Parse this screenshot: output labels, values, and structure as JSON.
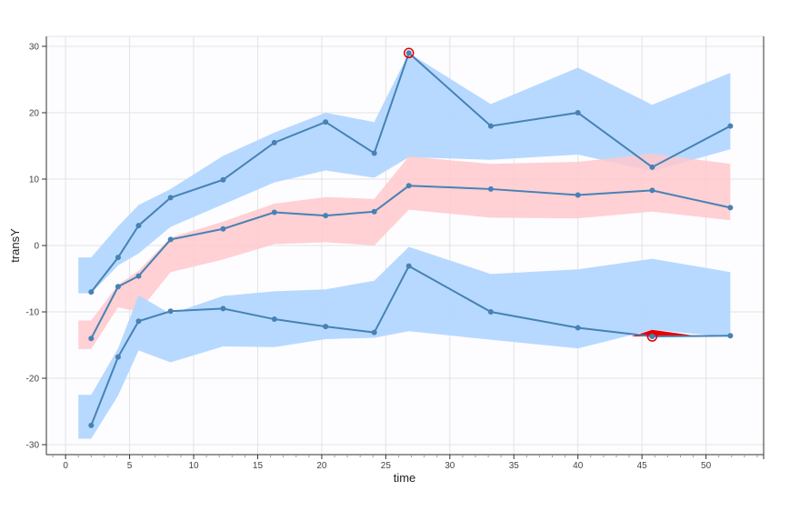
{
  "chart_data": {
    "type": "line",
    "xlabel": "time",
    "ylabel": "transY",
    "xlim": [
      -1.5,
      54.5
    ],
    "ylim": [
      -31.5,
      31.5
    ],
    "xticks": [
      0,
      5,
      10,
      15,
      20,
      25,
      30,
      35,
      40,
      45,
      50
    ],
    "yticks": [
      -30,
      -20,
      -10,
      0,
      10,
      20,
      30
    ],
    "grid": true,
    "colors": {
      "upper_band": "#b3d7ff",
      "median_band": "#ffc8cc",
      "lower_band": "#b3d7ff",
      "line": "#4682b4",
      "outlier_ring": "#e00000",
      "outlier_fill": "#ee0000"
    },
    "percentile_lines": [
      {
        "name": "upper",
        "x": [
          2,
          4.1,
          5.7,
          8.2,
          12.3,
          16.3,
          20.3,
          24.1,
          26.8,
          33.2,
          40,
          45.8,
          51.9
        ],
        "y": [
          -7,
          -1.8,
          3,
          7.2,
          9.9,
          15.5,
          18.6,
          13.9,
          29,
          18,
          20,
          11.8,
          18
        ]
      },
      {
        "name": "median",
        "x": [
          2,
          4.1,
          5.7,
          8.2,
          12.3,
          16.3,
          20.3,
          24.1,
          26.8,
          33.2,
          40,
          45.8,
          51.9
        ],
        "y": [
          -14,
          -6.2,
          -4.6,
          0.9,
          2.5,
          5,
          4.5,
          5.1,
          9,
          8.5,
          7.6,
          8.3,
          5.7
        ]
      },
      {
        "name": "lower",
        "x": [
          2,
          4.1,
          5.7,
          8.2,
          12.3,
          16.3,
          20.3,
          24.1,
          26.8,
          33.2,
          40,
          45.8,
          51.9
        ],
        "y": [
          -27.1,
          -16.8,
          -11.4,
          -9.9,
          -9.5,
          -11.1,
          -12.2,
          -13.1,
          -3.1,
          -10,
          -12.4,
          -13.7,
          -13.6
        ]
      }
    ],
    "prediction_bands": [
      {
        "name": "upper-band",
        "x": [
          1,
          2,
          4.1,
          5.7,
          8.2,
          12.3,
          16.3,
          20.3,
          24.1,
          26.8,
          33.2,
          40,
          45.8,
          51.9
        ],
        "lower": [
          -7.2,
          -7.2,
          -3,
          -1.2,
          2.8,
          6.2,
          9.5,
          11.3,
          10.2,
          13.3,
          12.9,
          13.7,
          11.2,
          14.5
        ],
        "upper": [
          -1.8,
          -1.8,
          2.9,
          6.1,
          8.5,
          13.5,
          17,
          20,
          18.6,
          29,
          21.3,
          26.8,
          21.2,
          26
        ]
      },
      {
        "name": "median-band",
        "x": [
          1,
          2,
          4.1,
          5.7,
          8.2,
          12.3,
          16.3,
          20.3,
          24.1,
          26.8,
          33.2,
          40,
          45.8,
          51.9
        ],
        "lower": [
          -15.6,
          -15.6,
          -9.3,
          -10,
          -4,
          -2.1,
          0.2,
          0.5,
          0,
          5.4,
          4.2,
          4.1,
          5.1,
          3.8
        ],
        "upper": [
          -11.3,
          -11.3,
          -5.9,
          -3.8,
          1.2,
          3.6,
          6.3,
          7.3,
          7,
          13.4,
          12.3,
          12.6,
          13.8,
          12.3
        ]
      },
      {
        "name": "lower-band",
        "x": [
          1,
          2,
          4.1,
          5.7,
          8.2,
          12.3,
          16.3,
          20.3,
          24.1,
          26.8,
          33.2,
          40,
          45.8,
          51.9
        ],
        "lower": [
          -29.1,
          -29.1,
          -22.6,
          -15.8,
          -17.6,
          -15.2,
          -15.3,
          -14.1,
          -13.9,
          -12.9,
          -14.2,
          -15.5,
          -12.7,
          -13.8
        ],
        "upper": [
          -22.5,
          -22.5,
          -15.5,
          -7.5,
          -10.3,
          -7.6,
          -6.9,
          -6.6,
          -5.3,
          -0.2,
          -4.3,
          -3.6,
          -2,
          -4
        ]
      }
    ],
    "outliers": [
      {
        "x": 26.8,
        "y": 29
      },
      {
        "x": 45.8,
        "y": -13.7
      }
    ],
    "outlier_areas": [
      {
        "x": [
          44.2,
          45.8,
          49.6
        ],
        "y": [
          -13.7,
          -12.7,
          -13.7
        ]
      }
    ]
  }
}
